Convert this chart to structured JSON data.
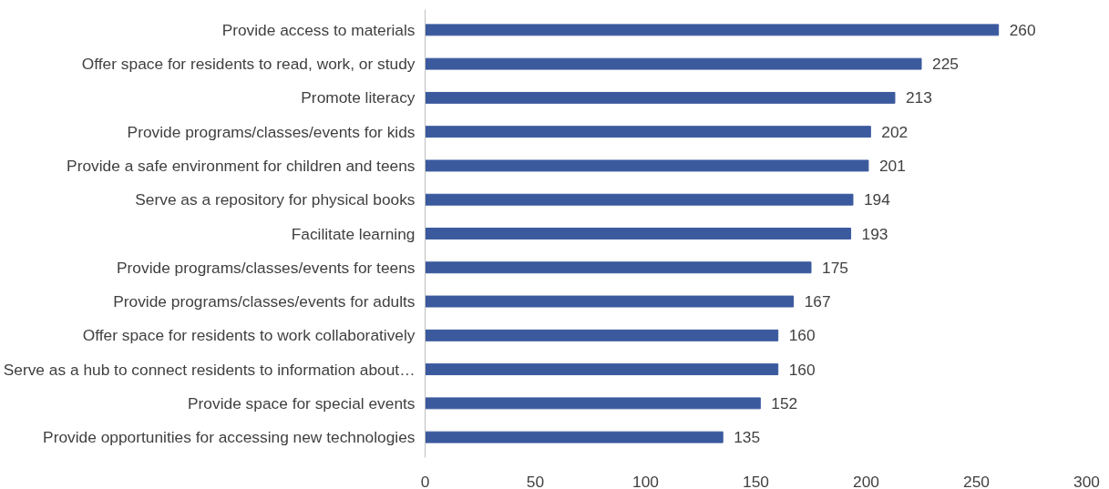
{
  "chart_data": {
    "type": "bar",
    "orientation": "horizontal",
    "categories": [
      "Provide access to materials",
      "Offer space for residents to read, work, or study",
      "Promote literacy",
      "Provide programs/classes/events for kids",
      "Provide a safe environment for children and teens",
      "Serve as a repository for physical books",
      "Facilitate learning",
      "Provide programs/classes/events for teens",
      "Provide programs/classes/events for adults",
      "Offer space for residents to work collaboratively",
      "Serve as a hub to connect residents to information about…",
      "Provide space for special events",
      "Provide opportunities for accessing new technologies"
    ],
    "values": [
      260,
      225,
      213,
      202,
      201,
      194,
      193,
      175,
      167,
      160,
      160,
      152,
      135
    ],
    "color": "#3b5a9e",
    "xlim": [
      0,
      300
    ],
    "xticks": [
      0,
      50,
      100,
      150,
      200,
      250,
      300
    ],
    "grid": false,
    "data_labels": true
  }
}
